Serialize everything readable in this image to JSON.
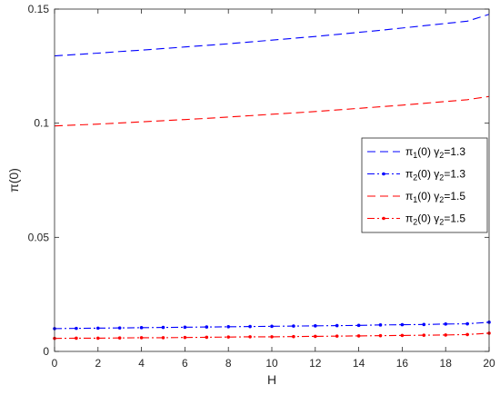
{
  "chart_data": {
    "type": "line",
    "xlabel": "H",
    "ylabel": "π(0)",
    "xlim": [
      0,
      20
    ],
    "ylim": [
      0,
      0.15
    ],
    "x_ticks": [
      "0",
      "2",
      "4",
      "6",
      "8",
      "10",
      "12",
      "14",
      "16",
      "18",
      "20"
    ],
    "y_ticks": [
      "0",
      "0.05",
      "0.1",
      "0.15"
    ],
    "legend_position": "right",
    "grid": false,
    "x": [
      0,
      1,
      2,
      3,
      4,
      5,
      6,
      7,
      8,
      9,
      10,
      11,
      12,
      13,
      14,
      15,
      16,
      17,
      18,
      19,
      20
    ],
    "series": [
      {
        "name_parts": [
          "π",
          "1",
          "(0) γ",
          "2",
          "=1.3"
        ],
        "color": "#0000ff",
        "style": "dashed",
        "marker": false,
        "values": [
          0.1295,
          0.1301,
          0.1307,
          0.1314,
          0.132,
          0.1327,
          0.1334,
          0.1341,
          0.1348,
          0.1356,
          0.1364,
          0.1372,
          0.138,
          0.1389,
          0.1398,
          0.1407,
          0.1417,
          0.1427,
          0.1437,
          0.1447,
          0.1477
        ]
      },
      {
        "name_parts": [
          "π",
          "2",
          "(0) γ",
          "2",
          "=1.3"
        ],
        "color": "#0000ff",
        "style": "dashdot",
        "marker": true,
        "values": [
          0.01,
          0.0101,
          0.0102,
          0.0103,
          0.0104,
          0.0105,
          0.0106,
          0.0107,
          0.0108,
          0.0109,
          0.011,
          0.0111,
          0.0112,
          0.0113,
          0.0114,
          0.0116,
          0.0117,
          0.0118,
          0.012,
          0.0121,
          0.0128
        ]
      },
      {
        "name_parts": [
          "π",
          "1",
          "(0) γ",
          "2",
          "=1.5"
        ],
        "color": "#ff0000",
        "style": "dashed",
        "marker": false,
        "values": [
          0.0988,
          0.0992,
          0.0996,
          0.1001,
          0.1006,
          0.1011,
          0.1016,
          0.1021,
          0.1027,
          0.1033,
          0.1039,
          0.1045,
          0.1051,
          0.1058,
          0.1065,
          0.1072,
          0.1079,
          0.1087,
          0.1095,
          0.1103,
          0.1117
        ]
      },
      {
        "name_parts": [
          "π",
          "2",
          "(0) γ",
          "2",
          "=1.5"
        ],
        "color": "#ff0000",
        "style": "dashdot",
        "marker": true,
        "values": [
          0.0057,
          0.0058,
          0.0058,
          0.0059,
          0.006,
          0.006,
          0.0061,
          0.0062,
          0.0063,
          0.0064,
          0.0064,
          0.0065,
          0.0066,
          0.0067,
          0.0068,
          0.0069,
          0.007,
          0.0071,
          0.0072,
          0.0074,
          0.008
        ]
      }
    ]
  }
}
